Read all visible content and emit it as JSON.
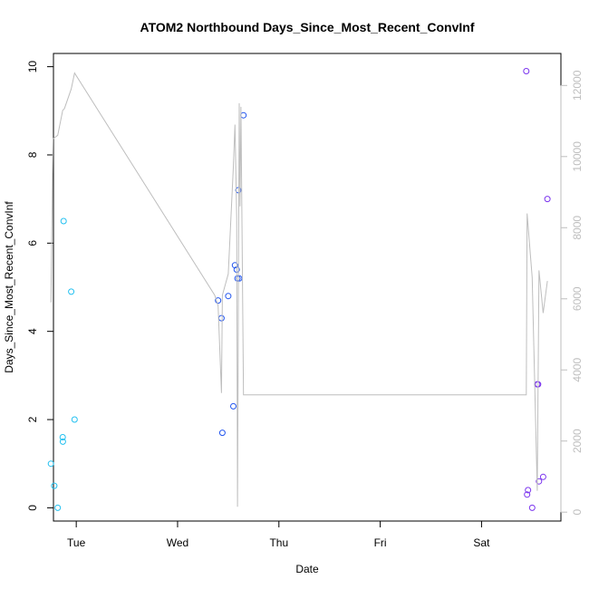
{
  "chart_data": {
    "type": "scatter",
    "title": "ATOM2 Northbound Days_Since_Most_Recent_ConvInf",
    "xlabel": "Date",
    "ylabel": "Days_Since_Most_Recent_ConvInf",
    "x_ticks": [
      "Tue",
      "Wed",
      "Thu",
      "Fri",
      "Sat"
    ],
    "xlim": [
      "Mon 18:36",
      "Sat 18:48"
    ],
    "ylim": [
      -0.3,
      10.3
    ],
    "y_ticks": [
      0,
      2,
      4,
      6,
      8,
      10
    ],
    "y2lim": [
      -250,
      12900
    ],
    "y2_ticks": [
      0,
      2000,
      4000,
      6000,
      8000,
      10000,
      12000
    ],
    "grid": false,
    "legend": "none",
    "series": [
      {
        "color": "#22c0f0",
        "points": [
          {
            "x": "Mon 18:00",
            "y": 1.0
          },
          {
            "x": "Mon 18:48",
            "y": 0.5
          },
          {
            "x": "Mon 19:36",
            "y": 0.0
          },
          {
            "x": "Mon 20:48",
            "y": 1.6
          },
          {
            "x": "Mon 20:50",
            "y": 1.5
          },
          {
            "x": "Mon 21:00",
            "y": 6.5
          },
          {
            "x": "Mon 22:48",
            "y": 4.9
          },
          {
            "x": "Mon 23:36",
            "y": 2.0
          }
        ]
      },
      {
        "color": "#2255ee",
        "points": [
          {
            "x": "Wed 09:36",
            "y": 4.7
          },
          {
            "x": "Wed 10:24",
            "y": 4.3
          },
          {
            "x": "Wed 10:36",
            "y": 1.7
          },
          {
            "x": "Wed 12:00",
            "y": 4.8
          },
          {
            "x": "Wed 13:12",
            "y": 2.3
          },
          {
            "x": "Wed 13:36",
            "y": 5.5
          },
          {
            "x": "Wed 14:00",
            "y": 5.4
          },
          {
            "x": "Wed 14:12",
            "y": 5.2
          },
          {
            "x": "Wed 14:24",
            "y": 7.2
          },
          {
            "x": "Wed 14:36",
            "y": 5.2
          },
          {
            "x": "Wed 15:36",
            "y": 8.9
          }
        ]
      },
      {
        "color": "#7a33ee",
        "points": [
          {
            "x": "Sat 10:36",
            "y": 9.9
          },
          {
            "x": "Sat 10:48",
            "y": 0.3
          },
          {
            "x": "Sat 11:00",
            "y": 0.4
          },
          {
            "x": "Sat 12:00",
            "y": 0.0
          },
          {
            "x": "Sat 13:12",
            "y": 2.8
          },
          {
            "x": "Sat 13:24",
            "y": 2.8
          },
          {
            "x": "Sat 13:36",
            "y": 0.6
          },
          {
            "x": "Sat 14:36",
            "y": 0.7
          },
          {
            "x": "Sat 15:36",
            "y": 7.0
          }
        ]
      },
      {
        "type": "line",
        "axis": "right",
        "color": "#bebebe",
        "points": [
          {
            "x": "Mon 18:00",
            "y": 5900
          },
          {
            "x": "Mon 18:30",
            "y": 10500
          },
          {
            "x": "Mon 19:36",
            "y": 10600
          },
          {
            "x": "Mon 20:48",
            "y": 11300
          },
          {
            "x": "Mon 21:12",
            "y": 11350
          },
          {
            "x": "Mon 22:48",
            "y": 11900
          },
          {
            "x": "Mon 23:36",
            "y": 12350
          },
          {
            "x": "Wed 08:48",
            "y": 6100
          },
          {
            "x": "Wed 09:36",
            "y": 5800
          },
          {
            "x": "Wed 10:24",
            "y": 3350
          },
          {
            "x": "Wed 10:36",
            "y": 6100
          },
          {
            "x": "Wed 12:00",
            "y": 6700
          },
          {
            "x": "Wed 13:12",
            "y": 9700
          },
          {
            "x": "Wed 13:36",
            "y": 10900
          },
          {
            "x": "Wed 14:00",
            "y": 8300
          },
          {
            "x": "Wed 14:12",
            "y": 150
          },
          {
            "x": "Wed 14:36",
            "y": 11500
          },
          {
            "x": "Wed 14:48",
            "y": 8600
          },
          {
            "x": "Wed 15:00",
            "y": 11400
          },
          {
            "x": "Wed 15:36",
            "y": 3300
          },
          {
            "x": "Sat 10:36",
            "y": 3300
          },
          {
            "x": "Sat 10:48",
            "y": 8400
          },
          {
            "x": "Sat 12:00",
            "y": 6600
          },
          {
            "x": "Sat 13:12",
            "y": 600
          },
          {
            "x": "Sat 13:36",
            "y": 6800
          },
          {
            "x": "Sat 14:36",
            "y": 5600
          },
          {
            "x": "Sat 15:36",
            "y": 6500
          }
        ]
      }
    ]
  }
}
